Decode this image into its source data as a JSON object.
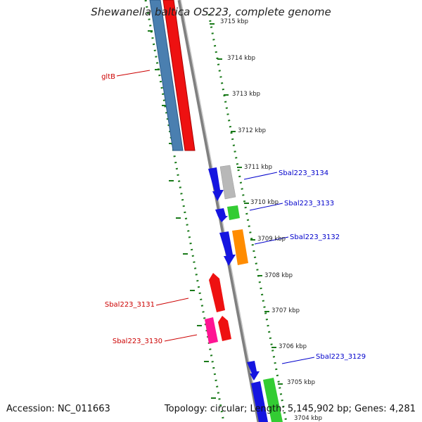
{
  "title": "Shewanella baltica OS223, complete genome",
  "accession": "Accession: NC_011663",
  "summary": "Topology: circular; Length: 5,145,902 bp; Genes: 4,281",
  "ticks": [
    "3715 kbp",
    "3714 kbp",
    "3713 kbp",
    "3712 kbp",
    "3711 kbp",
    "3710 kbp",
    "3709 kbp",
    "3708 kbp",
    "3707 kbp",
    "3706 kbp",
    "3705 kbp",
    "3704 kbp"
  ],
  "gene_labels": [
    {
      "text": "gltB",
      "color": "#cc0000"
    },
    {
      "text": "Sbal223_3134",
      "color": "#0000cc"
    },
    {
      "text": "Sbal223_3133",
      "color": "#0000cc"
    },
    {
      "text": "Sbal223_3132",
      "color": "#0000cc"
    },
    {
      "text": "Sbal223_3131",
      "color": "#cc0000"
    },
    {
      "text": "Sbal223_3130",
      "color": "#cc0000"
    },
    {
      "text": "Sbal223_3129",
      "color": "#0000cc"
    }
  ],
  "colors": {
    "backbone": "#808080",
    "ruler": "#1a7a1a",
    "blue": "#1515e0",
    "steelblue": "#4a7fb0",
    "red": "#ee1111",
    "gray": "#b8b8b8",
    "green": "#33cc33",
    "orange": "#ff8c00",
    "pink": "#ff1493"
  }
}
